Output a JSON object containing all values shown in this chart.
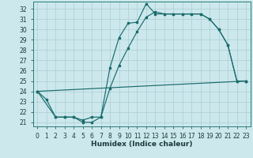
{
  "xlabel": "Humidex (Indice chaleur)",
  "bg_color": "#cce8ec",
  "line_color": "#1a6b6b",
  "grid_color": "#aacdd4",
  "xlim_min": -0.5,
  "xlim_max": 23.5,
  "ylim_min": 20.6,
  "ylim_max": 32.7,
  "xticks": [
    0,
    1,
    2,
    3,
    4,
    5,
    6,
    7,
    8,
    9,
    10,
    11,
    12,
    13,
    14,
    15,
    16,
    17,
    18,
    19,
    20,
    21,
    22,
    23
  ],
  "yticks": [
    21,
    22,
    23,
    24,
    25,
    26,
    27,
    28,
    29,
    30,
    31,
    32
  ],
  "series1_x": [
    0,
    1,
    2,
    3,
    4,
    5,
    6,
    7,
    8,
    9,
    10,
    11,
    12,
    13,
    14,
    15,
    16,
    17,
    18,
    19,
    20,
    21,
    22,
    23
  ],
  "series1_y": [
    24.0,
    23.2,
    21.5,
    21.5,
    21.5,
    21.0,
    21.0,
    21.5,
    26.3,
    29.2,
    30.6,
    30.7,
    32.5,
    31.5,
    31.5,
    31.5,
    31.5,
    31.5,
    31.5,
    31.0,
    30.0,
    28.5,
    25.0,
    25.0
  ],
  "series2_x": [
    0,
    2,
    3,
    4,
    5,
    6,
    7,
    8,
    9,
    10,
    11,
    12,
    13,
    14,
    15,
    16,
    17,
    18,
    19,
    20,
    21,
    22,
    23
  ],
  "series2_y": [
    24.0,
    21.5,
    21.5,
    21.5,
    21.2,
    21.5,
    21.5,
    24.3,
    26.5,
    28.2,
    29.8,
    31.2,
    31.7,
    31.5,
    31.5,
    31.5,
    31.5,
    31.5,
    31.0,
    30.0,
    28.5,
    25.0,
    25.0
  ],
  "series3_x": [
    0,
    23
  ],
  "series3_y": [
    24.0,
    25.0
  ],
  "xlabel_fontsize": 6.5,
  "tick_fontsize": 5.5
}
